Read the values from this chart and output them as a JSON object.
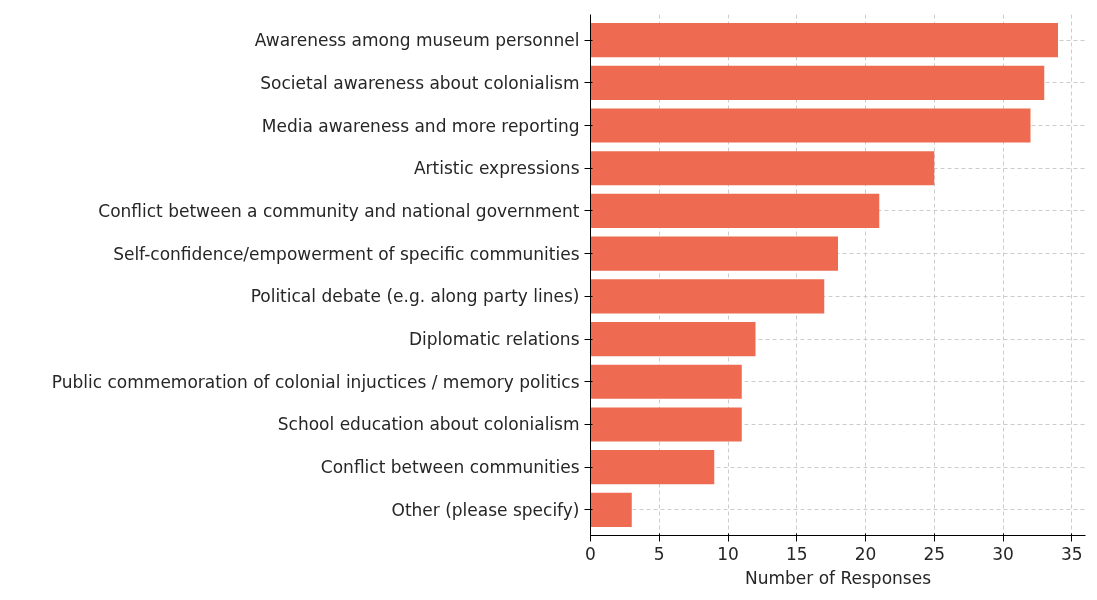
{
  "chart_data": {
    "type": "bar",
    "orientation": "horizontal",
    "xlabel": "Number of Responses",
    "categories": [
      "Awareness among museum personnel",
      "Societal awareness about colonialism",
      "Media awareness and more reporting",
      "Artistic expressions",
      "Conflict between a community and national government",
      "Self-confidence/empowerment of specific communities",
      "Political debate (e.g. along party lines)",
      "Diplomatic relations",
      "Public commemoration of colonial injuctices / memory politics",
      "School education about colonialism",
      "Conflict between communities",
      "Other (please specify)"
    ],
    "values": [
      34,
      33,
      32,
      25,
      21,
      18,
      17,
      12,
      11,
      11,
      9,
      3
    ],
    "color": "#ee6a50",
    "xlim": [
      0,
      36
    ],
    "xticks": [
      0,
      5,
      10,
      15,
      20,
      25,
      30,
      35
    ],
    "grid": true
  }
}
